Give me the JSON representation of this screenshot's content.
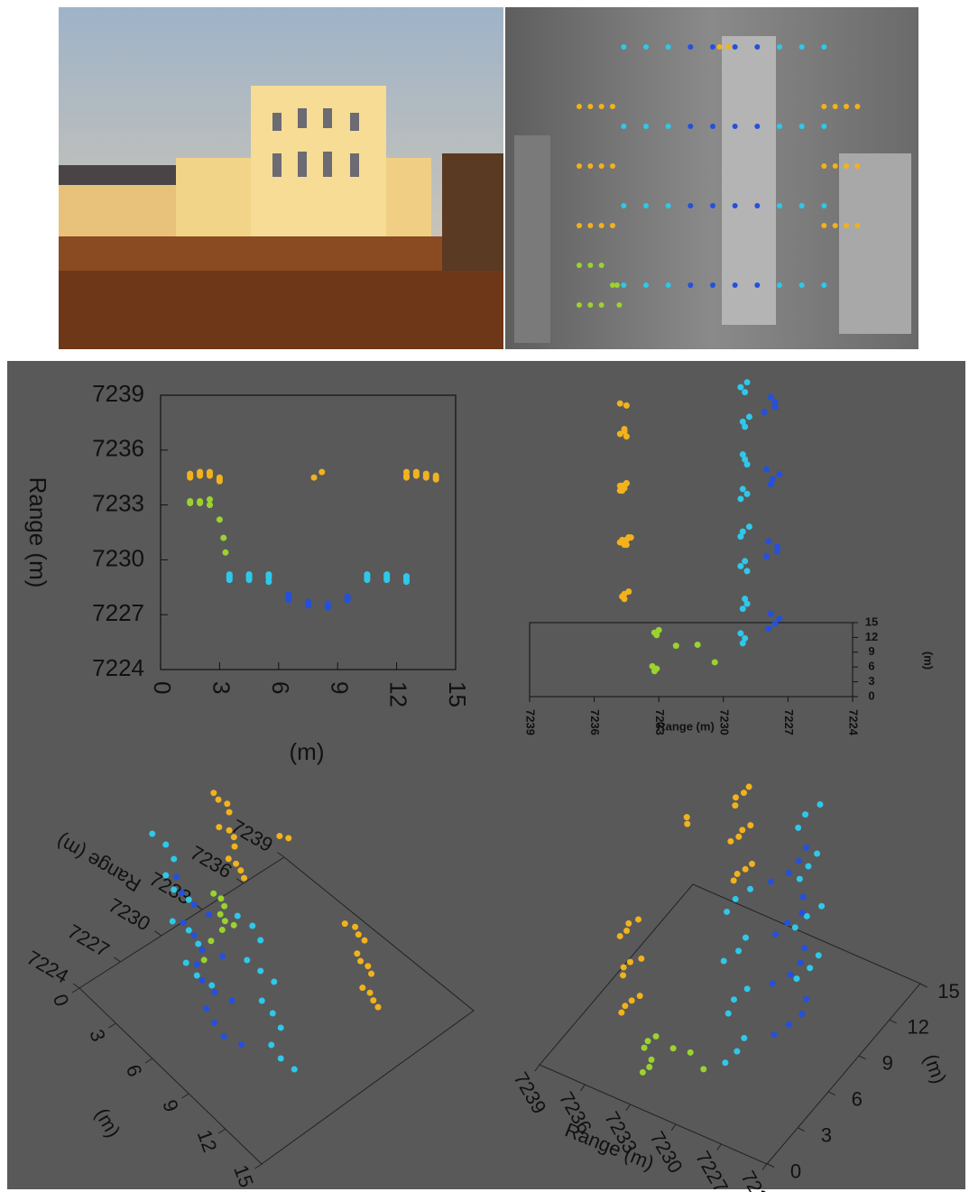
{
  "chart_data": {
    "type": "scatter3d",
    "xlabel": "(m)",
    "zlabel": "Range (m)",
    "xlim": [
      0,
      15
    ],
    "xticks": [
      0,
      3,
      6,
      9,
      12,
      15
    ],
    "zlim": [
      7224,
      7239
    ],
    "zticks": [
      7224,
      7227,
      7230,
      7233,
      7236,
      7239
    ],
    "series": [
      {
        "color": "#f2b21c",
        "x": [
          1.5,
          2,
          2.5,
          3,
          1.5,
          2,
          2.5,
          3,
          1.5,
          2,
          2.5,
          3,
          12.5,
          13,
          13.5,
          14,
          12.5,
          13,
          13.5,
          14,
          12.5,
          13,
          13.5,
          14,
          7.8,
          8.2
        ],
        "y": [
          5,
          5,
          5,
          5,
          8,
          8,
          8,
          8,
          11,
          11,
          11,
          11,
          5,
          5,
          5,
          5,
          8,
          8,
          8,
          8,
          11,
          11,
          11,
          11,
          14,
          14
        ],
        "values": [
          7234.6,
          7234.7,
          7234.6,
          7234.4,
          7234.5,
          7234.8,
          7234.7,
          7234.3,
          7234.7,
          7234.6,
          7234.8,
          7234.5,
          7234.6,
          7234.7,
          7234.5,
          7234.4,
          7234.8,
          7234.6,
          7234.7,
          7234.5,
          7234.5,
          7234.8,
          7234.6,
          7234.6,
          7234.5,
          7234.8
        ]
      },
      {
        "color": "#9bd32e",
        "x": [
          1.5,
          2,
          2.5,
          1.5,
          2,
          2.5,
          3,
          3.2,
          3.3
        ],
        "y": [
          1,
          1,
          1,
          3,
          3,
          3,
          2,
          2,
          1
        ],
        "values": [
          7233.2,
          7233.1,
          7233.3,
          7233.1,
          7233.2,
          7233.0,
          7232.2,
          7231.2,
          7230.4
        ]
      },
      {
        "color": "#2ec8ea",
        "x": [
          3.5,
          4.5,
          5.5,
          10.5,
          11.5,
          12.5,
          3.5,
          4.5,
          5.5,
          10.5,
          11.5,
          12.5,
          3.5,
          4.5,
          5.5,
          10.5,
          11.5,
          12.5,
          3.5,
          4.5,
          5.5,
          10.5,
          11.5,
          12.5
        ],
        "y": [
          2,
          2,
          2,
          2,
          2,
          2,
          6,
          6,
          6,
          6,
          6,
          6,
          10,
          10,
          10,
          10,
          10,
          10,
          14,
          14,
          14,
          14,
          14,
          14
        ],
        "values": [
          7229.1,
          7229.0,
          7229.2,
          7229.1,
          7228.9,
          7229.0,
          7228.9,
          7229.2,
          7229.0,
          7229.2,
          7229.1,
          7228.8,
          7229.2,
          7228.9,
          7229.1,
          7228.9,
          7229.0,
          7229.1,
          7229.0,
          7229.1,
          7228.8,
          7229.0,
          7229.2,
          7228.9
        ]
      },
      {
        "color": "#2450dc",
        "x": [
          6.5,
          7.5,
          8.5,
          9.5,
          6.5,
          7.5,
          8.5,
          9.5,
          6.5,
          7.5,
          8.5,
          9.5,
          6.5,
          7.5,
          8.5,
          9.5
        ],
        "y": [
          2,
          2,
          2,
          2,
          6,
          6,
          6,
          6,
          10,
          10,
          10,
          10,
          14,
          14,
          14,
          14
        ],
        "values": [
          7227.9,
          7227.6,
          7227.4,
          7227.8,
          7228.0,
          7227.5,
          7227.5,
          7227.9,
          7227.8,
          7227.7,
          7227.4,
          7228.0,
          7228.1,
          7227.6,
          7227.6,
          7227.8
        ]
      }
    ]
  }
}
